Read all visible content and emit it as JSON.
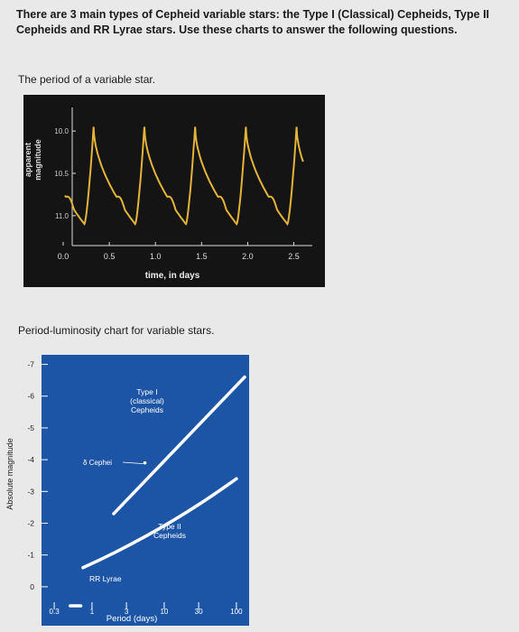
{
  "intro": "There are 3 main types of Cepheid variable stars: the Type I (Classical) Cepheids, Type II Cepheids and RR Lyrae stars. Use these charts to answer the following questions.",
  "chart1_caption": "The period of a variable star.",
  "chart2_caption": "Period-luminosity chart for variable stars.",
  "colors": {
    "page": "#e9e9ea",
    "chart1_bg": "#141414",
    "chart1_line": "#e3b437",
    "chart2_bg": "#1d55a6",
    "chart2_line": "#ffffff"
  },
  "chart_data": [
    {
      "type": "line",
      "xlabel": "time, in days",
      "ylabel": "apparent magnitude",
      "xlim": [
        0,
        2.7
      ],
      "ylim": [
        11.3,
        9.7
      ],
      "x_ticks": [
        0.0,
        0.5,
        1.0,
        1.5,
        2.0,
        2.5
      ],
      "x_tick_labels": [
        "0.0",
        "0.5",
        "1.0",
        "1.5",
        "2.0",
        "2.5"
      ],
      "y_ticks": [
        10.0,
        10.5,
        11.0
      ],
      "y_tick_labels": [
        "10.0",
        "10.5",
        "11.0"
      ],
      "series": [
        {
          "period": 0.55,
          "peaks_x": [
            0.33,
            0.88,
            1.43,
            1.98,
            2.53
          ],
          "min_mag": 11.1,
          "max_mag": 9.95
        }
      ]
    },
    {
      "type": "line",
      "xlabel": "Period (days)",
      "ylabel": "Absolute magnitude",
      "x_scale": "log",
      "xlim": [
        0.2,
        150
      ],
      "ylim": [
        0.6,
        -7.3
      ],
      "x_ticks": [
        0.3,
        1,
        3,
        10,
        30,
        100
      ],
      "x_tick_labels": [
        "0.3",
        "1",
        "3",
        "10",
        "30",
        "100"
      ],
      "y_ticks": [
        -7,
        -6,
        -5,
        -4,
        -3,
        -2,
        -1,
        0
      ],
      "y_tick_labels": [
        "-7",
        "-6",
        "-5",
        "-4",
        "-3",
        "-2",
        "-1",
        "0"
      ],
      "series": [
        {
          "name": "Type I (classical) Cepheids",
          "points": [
            [
              2,
              -2.3
            ],
            [
              130,
              -6.6
            ]
          ]
        },
        {
          "name": "Type II Cepheids",
          "points": [
            [
              0.75,
              -0.6
            ],
            [
              100,
              -3.4
            ]
          ]
        },
        {
          "name": "RR Lyrae",
          "points": [
            [
              0.5,
              0.6
            ],
            [
              0.7,
              0.6
            ]
          ]
        }
      ],
      "annotations": [
        {
          "label": "Type I",
          "sub1": "(classical)",
          "sub2": "Cepheids"
        },
        {
          "label": "Type II",
          "sub1": "Cepheids"
        },
        {
          "label": "δ Cephei",
          "x": 5.4,
          "y": -3.9
        },
        {
          "label": "RR Lyrae"
        }
      ]
    }
  ]
}
